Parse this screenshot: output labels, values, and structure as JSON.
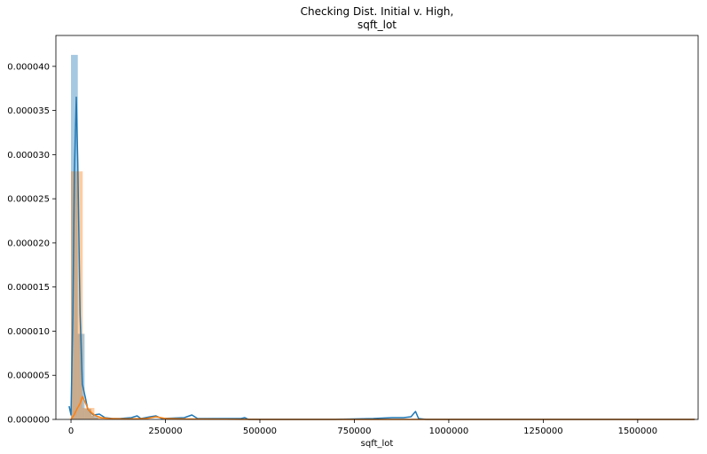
{
  "chart_data": {
    "type": "histogram",
    "title_lines": [
      "Checking Dist. Initial v. High,",
      "sqft_lot"
    ],
    "xlabel": "sqft_lot",
    "ylabel": "",
    "xlim": [
      -40000,
      1660000
    ],
    "ylim": [
      0,
      4.35e-05
    ],
    "x_ticks": [
      0,
      250000,
      500000,
      750000,
      1000000,
      1250000,
      1500000
    ],
    "x_tick_labels": [
      "0",
      "250000",
      "500000",
      "750000",
      "1000000",
      "1250000",
      "1500000"
    ],
    "y_ticks": [
      0,
      5e-06,
      1e-05,
      1.5e-05,
      2e-05,
      2.5e-05,
      3e-05,
      3.5e-05,
      4e-05
    ],
    "y_tick_labels": [
      "0.000000",
      "0.000005",
      "0.000010",
      "0.000015",
      "0.000020",
      "0.000025",
      "0.000030",
      "0.000035",
      "0.000040"
    ],
    "grid": false,
    "legend": "none",
    "series": [
      {
        "color": "#1f77b4",
        "bar_alpha": 0.4,
        "bars": [
          {
            "x0": 0,
            "x1": 18000,
            "h": 4.13e-05
          },
          {
            "x0": 18000,
            "x1": 36000,
            "h": 9.7e-06
          },
          {
            "x0": 36000,
            "x1": 54000,
            "h": 1.2e-06
          },
          {
            "x0": 54000,
            "x1": 72000,
            "h": 4e-07
          }
        ],
        "kde": [
          [
            -5000,
            1.5e-06
          ],
          [
            0,
            5e-07
          ],
          [
            5000,
            1.2e-05
          ],
          [
            9000,
            2.8e-05
          ],
          [
            14000,
            3.65e-05
          ],
          [
            18000,
            2.9e-05
          ],
          [
            24000,
            1.2e-05
          ],
          [
            30000,
            4e-06
          ],
          [
            38000,
            2.5e-06
          ],
          [
            44000,
            1.2e-06
          ],
          [
            52000,
            8e-07
          ],
          [
            60000,
            5e-07
          ],
          [
            75000,
            6e-07
          ],
          [
            90000,
            2e-07
          ],
          [
            110000,
            1e-07
          ],
          [
            130000,
            1e-07
          ],
          [
            160000,
            2e-07
          ],
          [
            175000,
            4e-07
          ],
          [
            185000,
            1e-07
          ],
          [
            210000,
            3e-07
          ],
          [
            225000,
            4e-07
          ],
          [
            240000,
            1e-07
          ],
          [
            300000,
            2e-07
          ],
          [
            320000,
            5e-07
          ],
          [
            335000,
            1e-07
          ],
          [
            450000,
            1e-07
          ],
          [
            460000,
            2e-07
          ],
          [
            470000,
            0.0
          ],
          [
            700000,
            0.0
          ],
          [
            800000,
            1e-07
          ],
          [
            850000,
            2e-07
          ],
          [
            880000,
            2e-07
          ],
          [
            900000,
            3e-07
          ],
          [
            912000,
            9e-07
          ],
          [
            920000,
            1e-07
          ],
          [
            940000,
            0.0
          ],
          [
            1200000,
            0.0
          ],
          [
            1651000,
            0.0
          ]
        ]
      },
      {
        "color": "#ff7f0e",
        "bar_alpha": 0.4,
        "bars": [
          {
            "x0": 0,
            "x1": 31000,
            "h": 2.81e-05
          },
          {
            "x0": 31000,
            "x1": 62000,
            "h": 1.3e-06
          },
          {
            "x0": 62000,
            "x1": 93000,
            "h": 2e-07
          }
        ],
        "kde": [
          [
            0,
            0.0
          ],
          [
            8000,
            5e-07
          ],
          [
            16000,
            1.2e-06
          ],
          [
            24000,
            1.8e-06
          ],
          [
            30000,
            2.6e-06
          ],
          [
            38000,
            1.9e-06
          ],
          [
            46000,
            1.1e-06
          ],
          [
            56000,
            7e-07
          ],
          [
            66000,
            4e-07
          ],
          [
            80000,
            2e-07
          ],
          [
            100000,
            1e-07
          ],
          [
            150000,
            5e-08
          ],
          [
            200000,
            1e-07
          ],
          [
            225000,
            3e-07
          ],
          [
            250000,
            1e-07
          ],
          [
            300000,
            5e-08
          ],
          [
            500000,
            0.0
          ],
          [
            1000000,
            0.0
          ],
          [
            1651000,
            0.0
          ]
        ]
      }
    ]
  }
}
